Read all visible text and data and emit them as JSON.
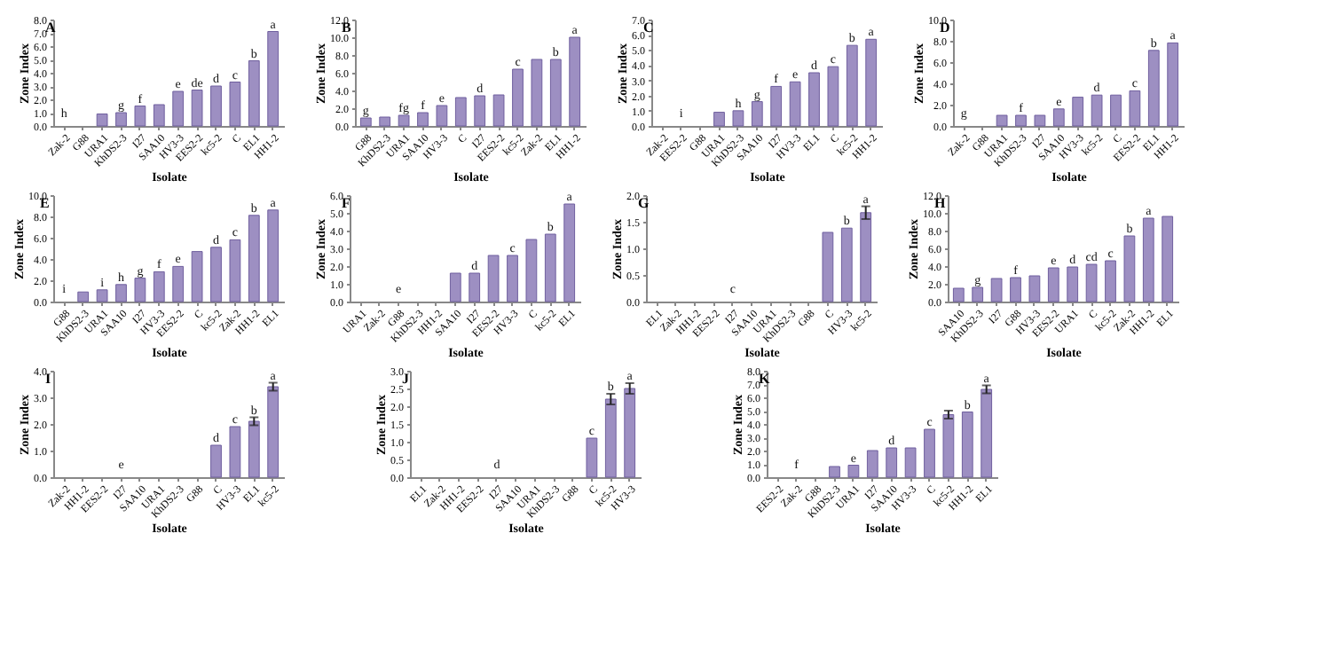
{
  "chart_data": [
    {
      "type": "bar",
      "title": "A",
      "xlabel": "Isolate",
      "ylabel": "Zone Index",
      "color": "#9d8fc2",
      "categories": [
        "Zak-2",
        "G88",
        "URA1",
        "KhDS2-3",
        "I27",
        "SAA10",
        "HV3-3",
        "EES2-2",
        "kc5-2",
        "C",
        "EL1",
        "HH1-2"
      ],
      "values": [
        null,
        null,
        0.9,
        1.0,
        1.5,
        1.6,
        2.6,
        2.7,
        3.0,
        3.3,
        4.9,
        7.1
      ],
      "ylim": [
        0,
        8
      ],
      "yticks": [
        {
          "value": 0,
          "label": "0.0"
        },
        {
          "value": 1,
          "label": "1.0"
        },
        {
          "value": 2,
          "label": "2.0"
        },
        {
          "value": 3,
          "label": "3.0"
        },
        {
          "value": 4,
          "label": "4.0"
        },
        {
          "value": 5,
          "label": "5.0"
        },
        {
          "value": 6,
          "label": "6.0"
        },
        {
          "value": 7,
          "label": "7.0"
        },
        {
          "value": 8,
          "label": "8.0"
        }
      ],
      "annotations": [
        "h",
        {
          "text": "g",
          "x": "KhDS2-3",
          "y": 1.0
        },
        {
          "text": "f",
          "x": "I27",
          "y": 1.5
        },
        {
          "text": "e",
          "x": "HV3-3",
          "y": 2.6
        },
        {
          "text": "de",
          "x": "EES2-2",
          "y": 2.7
        },
        {
          "text": "d",
          "x": "kc5-2",
          "y": 3.0
        },
        {
          "text": "c",
          "x": "C",
          "y": 3.3
        },
        {
          "text": "b",
          "x": "EL1",
          "y": 4.9
        },
        {
          "text": "a",
          "x": "HH1-2",
          "y": 7.1
        }
      ]
    },
    {
      "type": "bar",
      "title": "B",
      "xlabel": "Isolate",
      "ylabel": "Zone Index",
      "color": "#9d8fc2",
      "categories": [
        "G88",
        "KhDS2-3",
        "URA1",
        "SAA10",
        "HV3-3",
        "C",
        "I27",
        "EES2-2",
        "kc5-2",
        "Zak-2",
        "EL1",
        "HH1-2"
      ],
      "values": [
        0.9,
        1.0,
        1.2,
        1.5,
        2.3,
        3.2,
        3.4,
        3.5,
        6.4,
        7.5,
        7.5,
        10.0
      ],
      "ylim": [
        0,
        12
      ],
      "yticks": [
        {
          "value": 0,
          "label": "0.0"
        },
        {
          "value": 2,
          "label": "2.0"
        },
        {
          "value": 4,
          "label": "4.0"
        },
        {
          "value": 6,
          "label": "6.0"
        },
        {
          "value": 8,
          "label": "8.0"
        },
        {
          "value": 10,
          "label": "10.0"
        },
        {
          "value": 12,
          "label": "12.0"
        }
      ],
      "annotations": [
        {
          "text": "g",
          "x": "G88",
          "y": 0.9
        },
        {
          "text": "fg",
          "x": "URA1",
          "y": 1.2
        },
        {
          "text": "f",
          "x": "SAA10",
          "y": 1.5
        },
        {
          "text": "e",
          "x": "HV3-3",
          "y": 2.3
        },
        {
          "text": "d",
          "x": "I27",
          "y": 3.4
        },
        {
          "text": "c",
          "x": "kc5-2",
          "y": 6.4
        },
        {
          "text": "b",
          "x": "EL1",
          "y": 7.5
        },
        {
          "text": "a",
          "x": "HH1-2",
          "y": 10.0
        }
      ]
    },
    {
      "type": "bar",
      "title": "C",
      "xlabel": "Isolate",
      "ylabel": "Zone Index",
      "color": "#9d8fc2",
      "categories": [
        "Zak-2",
        "EES2-2",
        "G88",
        "URA1",
        "KhDS2-3",
        "SAA10",
        "I27",
        "HV3-3",
        "EL1",
        "C",
        "kc5-2",
        "HH1-2"
      ],
      "values": [
        null,
        null,
        null,
        0.9,
        1.0,
        1.6,
        2.6,
        2.9,
        3.5,
        3.9,
        5.3,
        5.7
      ],
      "ylim": [
        0,
        7
      ],
      "yticks": [
        {
          "value": 0,
          "label": "0.0"
        },
        {
          "value": 1,
          "label": "1.0"
        },
        {
          "value": 2,
          "label": "2.0"
        },
        {
          "value": 3,
          "label": "3.0"
        },
        {
          "value": 4,
          "label": "4.0"
        },
        {
          "value": 5,
          "label": "5.0"
        },
        {
          "value": 6,
          "label": "6.0"
        },
        {
          "value": 7,
          "label": "7.0"
        }
      ],
      "annotations": [
        "i",
        {
          "text": "h",
          "x": "KhDS2-3",
          "y": 1.0
        },
        {
          "text": "g",
          "x": "SAA10",
          "y": 1.6
        },
        {
          "text": "f",
          "x": "I27",
          "y": 2.6
        },
        {
          "text": "e",
          "x": "HV3-3",
          "y": 2.9
        },
        {
          "text": "d",
          "x": "EL1",
          "y": 3.5
        },
        {
          "text": "c",
          "x": "C",
          "y": 3.9
        },
        {
          "text": "b",
          "x": "kc5-2",
          "y": 5.3
        },
        {
          "text": "a",
          "x": "HH1-2",
          "y": 5.7
        }
      ]
    },
    {
      "type": "bar",
      "title": "D",
      "xlabel": "Isolate",
      "ylabel": "Zone Index",
      "color": "#9d8fc2",
      "categories": [
        "Zak-2",
        "G88",
        "URA1",
        "KhDS2-3",
        "I27",
        "SAA10",
        "HV3-3",
        "kc5-2",
        "C",
        "EES2-2",
        "EL1",
        "HH1-2"
      ],
      "values": [
        null,
        null,
        1.0,
        1.0,
        1.0,
        1.6,
        2.7,
        2.9,
        2.9,
        3.3,
        7.1,
        7.8
      ],
      "ylim": [
        0,
        10
      ],
      "yticks": [
        {
          "value": 0,
          "label": "0.0"
        },
        {
          "value": 2,
          "label": "2.0"
        },
        {
          "value": 4,
          "label": "4.0"
        },
        {
          "value": 6,
          "label": "6.0"
        },
        {
          "value": 8,
          "label": "8.0"
        },
        {
          "value": 10,
          "label": "10.0"
        }
      ],
      "annotations": [
        "g",
        {
          "text": "f",
          "x": "KhDS2-3",
          "y": 1.0
        },
        {
          "text": "e",
          "x": "SAA10",
          "y": 1.6
        },
        {
          "text": "d",
          "x": "kc5-2",
          "y": 2.9
        },
        {
          "text": "c",
          "x": "EES2-2",
          "y": 3.3
        },
        {
          "text": "b",
          "x": "EL1",
          "y": 7.1
        },
        {
          "text": "a",
          "x": "HH1-2",
          "y": 7.8
        }
      ]
    },
    {
      "type": "bar",
      "title": "E",
      "xlabel": "Isolate",
      "ylabel": "Zone Index",
      "color": "#9d8fc2",
      "categories": [
        "G88",
        "KhDS2-3",
        "URA1",
        "SAA10",
        "I27",
        "HV3-3",
        "EES2-2",
        "C",
        "kc5-2",
        "Zak-2",
        "HH1-2",
        "EL1"
      ],
      "values": [
        null,
        0.9,
        1.1,
        1.6,
        2.2,
        2.8,
        3.3,
        4.7,
        5.1,
        5.8,
        8.1,
        8.6
      ],
      "ylim": [
        0,
        10
      ],
      "yticks": [
        {
          "value": 0,
          "label": "0.0"
        },
        {
          "value": 2,
          "label": "2.0"
        },
        {
          "value": 4,
          "label": "4.0"
        },
        {
          "value": 6,
          "label": "6.0"
        },
        {
          "value": 8,
          "label": "8.0"
        },
        {
          "value": 10,
          "label": "10.0"
        }
      ],
      "annotations": [
        "i",
        {
          "text": "i",
          "x": "URA1",
          "y": 1.1
        },
        {
          "text": "h",
          "x": "SAA10",
          "y": 1.6
        },
        {
          "text": "g",
          "x": "I27",
          "y": 2.2
        },
        {
          "text": "f",
          "x": "HV3-3",
          "y": 2.8
        },
        {
          "text": "e",
          "x": "EES2-2",
          "y": 3.3
        },
        {
          "text": "d",
          "x": "kc5-2",
          "y": 5.1
        },
        {
          "text": "c",
          "x": "Zak-2",
          "y": 5.8
        },
        {
          "text": "b",
          "x": "HH1-2",
          "y": 8.1
        },
        {
          "text": "a",
          "x": "EL1",
          "y": 8.6
        }
      ]
    },
    {
      "type": "bar",
      "title": "F",
      "xlabel": "Isolate",
      "ylabel": "Zone Index",
      "color": "#9d8fc2",
      "categories": [
        "URA1",
        "Zak-2",
        "G88",
        "KhDS2-3",
        "HH1-2",
        "SAA10",
        "I27",
        "EES2-2",
        "HV3-3",
        "C",
        "kc5-2",
        "EL1"
      ],
      "values": [
        null,
        null,
        null,
        null,
        null,
        1.6,
        1.6,
        2.6,
        2.6,
        3.5,
        3.8,
        5.5
      ],
      "ylim": [
        0,
        6
      ],
      "yticks": [
        {
          "value": 0,
          "label": "0.0"
        },
        {
          "value": 1,
          "label": "1.0"
        },
        {
          "value": 2,
          "label": "2.0"
        },
        {
          "value": 3,
          "label": "3.0"
        },
        {
          "value": 4,
          "label": "4.0"
        },
        {
          "value": 5,
          "label": "5.0"
        },
        {
          "value": 6,
          "label": "6.0"
        }
      ],
      "annotations": [
        "e",
        {
          "text": "d",
          "x": "I27",
          "y": 1.6
        },
        {
          "text": "c",
          "x": "HV3-3",
          "y": 2.6
        },
        {
          "text": "b",
          "x": "kc5-2",
          "y": 3.8
        },
        {
          "text": "a",
          "x": "EL1",
          "y": 5.5
        }
      ]
    },
    {
      "type": "bar",
      "title": "G",
      "xlabel": "Isolate",
      "ylabel": "Zone Index",
      "color": "#9d8fc2",
      "categories": [
        "EL1",
        "Zak-2",
        "HH1-2",
        "EES2-2",
        "I27",
        "SAA10",
        "URA1",
        "KhDS2-3",
        "G88",
        "C",
        "HV3-3",
        "kc5-2"
      ],
      "values": [
        null,
        null,
        null,
        null,
        null,
        null,
        null,
        null,
        null,
        1.3,
        1.38,
        1.67
      ],
      "errors": [
        null,
        null,
        null,
        null,
        null,
        null,
        null,
        null,
        null,
        null,
        null,
        0.12
      ],
      "ylim": [
        0,
        2
      ],
      "yticks": [
        {
          "value": 0,
          "label": "0.0"
        },
        {
          "value": 0.5,
          "label": "0.5"
        },
        {
          "value": 1,
          "label": "1.0"
        },
        {
          "value": 1.5,
          "label": "1.5"
        },
        {
          "value": 2,
          "label": "2.0"
        }
      ],
      "annotations": [
        "c",
        {
          "text": "b",
          "x": "HV3-3",
          "y": 1.38
        },
        {
          "text": "a",
          "x": "kc5-2",
          "y": 1.67
        }
      ]
    },
    {
      "type": "bar",
      "title": "H",
      "xlabel": "Isolate",
      "ylabel": "Zone Index",
      "color": "#9d8fc2",
      "categories": [
        "SAA10",
        "KhDS2-3",
        "I27",
        "G88",
        "HV3-3",
        "EES2-2",
        "URA1",
        "C",
        "kc5-2",
        "Zak-2",
        "HH1-2",
        "EL1"
      ],
      "values": [
        1.5,
        1.6,
        2.6,
        2.7,
        2.9,
        3.8,
        3.9,
        4.2,
        4.6,
        7.4,
        9.4,
        9.6
      ],
      "ylim": [
        0,
        12
      ],
      "yticks": [
        {
          "value": 0,
          "label": "0.0"
        },
        {
          "value": 2,
          "label": "2.0"
        },
        {
          "value": 4,
          "label": "4.0"
        },
        {
          "value": 6,
          "label": "6.0"
        },
        {
          "value": 8,
          "label": "8.0"
        },
        {
          "value": 10,
          "label": "10.0"
        },
        {
          "value": 12,
          "label": "12.0"
        }
      ],
      "annotations": [
        {
          "text": "g",
          "x": "KhDS2-3",
          "y": 1.6
        },
        {
          "text": "f",
          "x": "G88",
          "y": 2.7
        },
        {
          "text": "e",
          "x": "EES2-2",
          "y": 3.8
        },
        {
          "text": "d",
          "x": "URA1",
          "y": 3.9
        },
        {
          "text": "cd",
          "x": "C",
          "y": 4.2
        },
        {
          "text": "c",
          "x": "kc5-2",
          "y": 4.6
        },
        {
          "text": "b",
          "x": "Zak-2",
          "y": 7.4
        },
        {
          "text": "a",
          "x": "HH1-2",
          "y": 9.4
        }
      ]
    },
    {
      "type": "bar",
      "title": "I",
      "xlabel": "Isolate",
      "ylabel": "Zone Index",
      "color": "#9d8fc2",
      "categories": [
        "Zak-2",
        "HH1-2",
        "EES2-2",
        "I27",
        "SAA10",
        "URA1",
        "KhDS2-3",
        "G88",
        "C",
        "HV3-3",
        "EL1",
        "kc5-2"
      ],
      "values": [
        null,
        null,
        null,
        null,
        null,
        null,
        null,
        null,
        1.2,
        1.9,
        2.1,
        3.4
      ],
      "errors": [
        null,
        null,
        null,
        null,
        null,
        null,
        null,
        null,
        null,
        null,
        0.15,
        0.15
      ],
      "ylim": [
        0,
        4
      ],
      "yticks": [
        {
          "value": 0,
          "label": "0.0"
        },
        {
          "value": 1,
          "label": "1.0"
        },
        {
          "value": 2,
          "label": "2.0"
        },
        {
          "value": 3,
          "label": "3.0"
        },
        {
          "value": 4,
          "label": "4.0"
        }
      ],
      "annotations": [
        "e",
        {
          "text": "d",
          "x": "C",
          "y": 1.2
        },
        {
          "text": "c",
          "x": "HV3-3",
          "y": 1.9
        },
        {
          "text": "b",
          "x": "EL1",
          "y": 2.1
        },
        {
          "text": "a",
          "x": "kc5-2",
          "y": 3.4
        }
      ]
    },
    {
      "type": "bar",
      "title": "J",
      "xlabel": "Isolate",
      "ylabel": "Zone Index",
      "color": "#9d8fc2",
      "categories": [
        "EL1",
        "Zak-2",
        "HH1-2",
        "EES2-2",
        "I27",
        "SAA10",
        "URA1",
        "KhDS2-3",
        "G88",
        "C",
        "kc5-2",
        "HV3-3"
      ],
      "values": [
        null,
        null,
        null,
        null,
        null,
        null,
        null,
        null,
        null,
        1.1,
        2.2,
        2.5
      ],
      "errors": [
        null,
        null,
        null,
        null,
        null,
        null,
        null,
        null,
        null,
        null,
        0.15,
        0.15
      ],
      "ylim": [
        0,
        3
      ],
      "yticks": [
        {
          "value": 0,
          "label": "0.0"
        },
        {
          "value": 0.5,
          "label": "0.5"
        },
        {
          "value": 1,
          "label": "1.0"
        },
        {
          "value": 1.5,
          "label": "1.5"
        },
        {
          "value": 2,
          "label": "2.0"
        },
        {
          "value": 2.5,
          "label": "2.5"
        },
        {
          "value": 3,
          "label": "3.0"
        }
      ],
      "annotations": [
        "d",
        {
          "text": "c",
          "x": "C",
          "y": 1.1
        },
        {
          "text": "b",
          "x": "kc5-2",
          "y": 2.2
        },
        {
          "text": "a",
          "x": "HV3-3",
          "y": 2.5
        }
      ]
    },
    {
      "type": "bar",
      "title": "K",
      "xlabel": "Isolate",
      "ylabel": "Zone Index",
      "color": "#9d8fc2",
      "categories": [
        "EES2-2",
        "Zak-2",
        "G88",
        "KhDS2-3",
        "URA1",
        "I27",
        "SAA10",
        "HV3-3",
        "C",
        "kc5-2",
        "HH1-2",
        "EL1"
      ],
      "values": [
        null,
        null,
        null,
        0.8,
        0.9,
        2.0,
        2.2,
        2.2,
        3.6,
        4.7,
        4.9,
        6.6
      ],
      "errors": [
        null,
        null,
        null,
        null,
        null,
        null,
        null,
        null,
        null,
        0.3,
        null,
        0.3
      ],
      "ylim": [
        0,
        8
      ],
      "yticks": [
        {
          "value": 0,
          "label": "0.0"
        },
        {
          "value": 1,
          "label": "1.0"
        },
        {
          "value": 2,
          "label": "2.0"
        },
        {
          "value": 3,
          "label": "3.0"
        },
        {
          "value": 4,
          "label": "4.0"
        },
        {
          "value": 5,
          "label": "5.0"
        },
        {
          "value": 6,
          "label": "6.0"
        },
        {
          "value": 7,
          "label": "7.0"
        },
        {
          "value": 8,
          "label": "8.0"
        }
      ],
      "annotations": [
        "f",
        {
          "text": "e",
          "x": "URA1",
          "y": 0.9
        },
        {
          "text": "d",
          "x": "SAA10",
          "y": 2.2
        },
        {
          "text": "c",
          "x": "C",
          "y": 3.6
        },
        {
          "text": "b",
          "x": "HH1-2",
          "y": 4.9
        },
        {
          "text": "a",
          "x": "EL1",
          "y": 6.6
        }
      ]
    }
  ]
}
